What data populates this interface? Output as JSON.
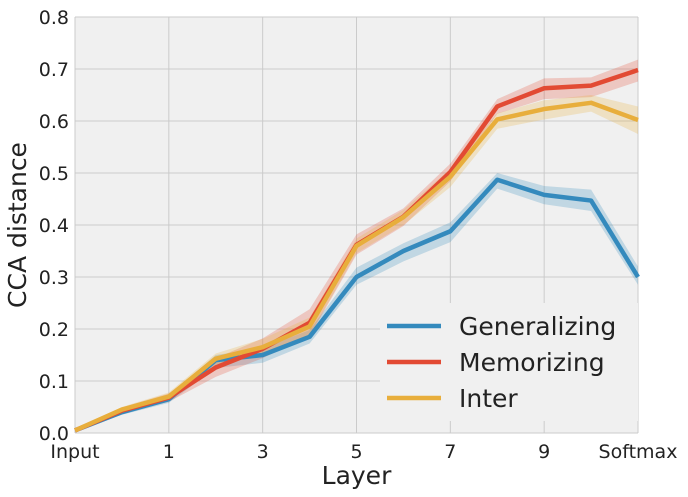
{
  "chart_data": {
    "type": "line",
    "title": "",
    "xlabel": "Layer",
    "ylabel": "CCA distance",
    "x": [
      0,
      1,
      2,
      3,
      4,
      5,
      6,
      7,
      8,
      9,
      10,
      11,
      12
    ],
    "x_ticks": [
      {
        "x": 0,
        "label": "Input"
      },
      {
        "x": 2,
        "label": "1"
      },
      {
        "x": 4,
        "label": "3"
      },
      {
        "x": 6,
        "label": "5"
      },
      {
        "x": 8,
        "label": "7"
      },
      {
        "x": 10,
        "label": "9"
      },
      {
        "x": 12,
        "label": "Softmax"
      }
    ],
    "xlim": [
      0,
      12
    ],
    "ylim": [
      0,
      0.8
    ],
    "y_ticks": [
      0.0,
      0.1,
      0.2,
      0.3,
      0.4,
      0.5,
      0.6,
      0.7,
      0.8
    ],
    "grid": true,
    "legend_position": "bottom-right",
    "series": [
      {
        "name": "Generalizing",
        "color": "#348ABD",
        "values": [
          0.005,
          0.04,
          0.065,
          0.14,
          0.15,
          0.185,
          0.3,
          0.35,
          0.388,
          0.487,
          0.458,
          0.447,
          0.3
        ],
        "lower": [
          0.003,
          0.035,
          0.058,
          0.125,
          0.135,
          0.172,
          0.285,
          0.33,
          0.367,
          0.47,
          0.44,
          0.427,
          0.285
        ],
        "upper": [
          0.007,
          0.045,
          0.072,
          0.15,
          0.163,
          0.198,
          0.318,
          0.365,
          0.405,
          0.5,
          0.475,
          0.468,
          0.32
        ]
      },
      {
        "name": "Memorizing",
        "color": "#E24A33",
        "values": [
          0.005,
          0.043,
          0.068,
          0.126,
          0.162,
          0.212,
          0.362,
          0.416,
          0.502,
          0.628,
          0.663,
          0.668,
          0.698
        ],
        "lower": [
          0.003,
          0.037,
          0.06,
          0.108,
          0.144,
          0.186,
          0.343,
          0.398,
          0.484,
          0.614,
          0.642,
          0.646,
          0.676
        ],
        "upper": [
          0.007,
          0.049,
          0.076,
          0.144,
          0.182,
          0.238,
          0.382,
          0.432,
          0.518,
          0.642,
          0.682,
          0.684,
          0.718
        ]
      },
      {
        "name": "Inter",
        "color": "#E8AE3C",
        "values": [
          0.005,
          0.045,
          0.07,
          0.143,
          0.165,
          0.205,
          0.36,
          0.415,
          0.493,
          0.603,
          0.623,
          0.635,
          0.602
        ],
        "lower": [
          0.003,
          0.04,
          0.063,
          0.132,
          0.15,
          0.188,
          0.346,
          0.4,
          0.473,
          0.585,
          0.603,
          0.618,
          0.575
        ],
        "upper": [
          0.007,
          0.05,
          0.078,
          0.153,
          0.181,
          0.222,
          0.374,
          0.429,
          0.508,
          0.615,
          0.64,
          0.65,
          0.628
        ]
      }
    ]
  }
}
